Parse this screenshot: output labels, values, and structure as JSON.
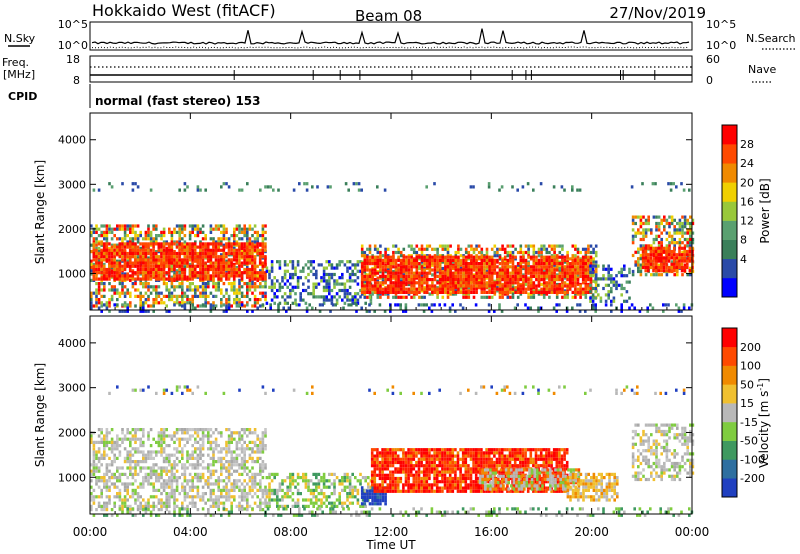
{
  "header": {
    "station": "Hokkaido West (fitACF)",
    "beam": "Beam 08",
    "date": "27/Nov/2019"
  },
  "strips": {
    "nsky_label": "N.Sky",
    "nsearch_label": "N.Search",
    "noise_ticks_left": [
      "10^5",
      "10^0"
    ],
    "noise_ticks_right": [
      "10^5",
      "10^0"
    ],
    "freq_label_1": "Freq.",
    "freq_label_2": "[MHz]",
    "freq_ticks": [
      "18",
      "8"
    ],
    "nave_label": "Nave",
    "nave_ticks": [
      "60",
      "0"
    ],
    "cpid_label": "CPID",
    "cpid_text": "normal (fast stereo) 153"
  },
  "chart_data": [
    {
      "type": "heatmap",
      "name": "power",
      "ylabel": "Slant Range [km]",
      "xlabel": "",
      "x_ticks": [
        "00:00",
        "04:00",
        "08:00",
        "12:00",
        "16:00",
        "20:00",
        "00:00"
      ],
      "xlim_hours": [
        0,
        24
      ],
      "y_ticks": [
        "1000",
        "2000",
        "3000",
        "4000"
      ],
      "ylim": [
        180,
        4600
      ],
      "colorbar": {
        "label": "Power [dB]",
        "ticks": [
          "28",
          "24",
          "20",
          "16",
          "12",
          "8",
          "4"
        ],
        "colors": [
          "#0000ff",
          "#2a4aa8",
          "#3a7f5a",
          "#5aa070",
          "#99c83a",
          "#f0d000",
          "#f08a00",
          "#ff4a00",
          "#ff0000"
        ]
      },
      "regions": [
        {
          "t0": 0.0,
          "t1": 7.0,
          "r0": 250,
          "r1": 2100,
          "class": "mixed"
        },
        {
          "t0": 0.1,
          "t1": 7.0,
          "r0": 900,
          "r1": 1700,
          "class": "strong"
        },
        {
          "t0": 7.0,
          "t1": 11.2,
          "r0": 350,
          "r1": 1300,
          "class": "weak"
        },
        {
          "t0": 10.8,
          "t1": 20.2,
          "r0": 500,
          "r1": 1650,
          "class": "mixed"
        },
        {
          "t0": 10.8,
          "t1": 20.0,
          "r0": 550,
          "r1": 1400,
          "class": "strong"
        },
        {
          "t0": 19.9,
          "t1": 21.5,
          "r0": 350,
          "r1": 1200,
          "class": "weak"
        },
        {
          "t0": 21.6,
          "t1": 24.0,
          "r0": 950,
          "r1": 2300,
          "class": "mixed"
        },
        {
          "t0": 22.0,
          "t1": 24.0,
          "r0": 1050,
          "r1": 1600,
          "class": "strong"
        },
        {
          "t0": 0.0,
          "t1": 24.0,
          "r0": 2900,
          "r1": 3050,
          "class": "sparse"
        },
        {
          "t0": 0.0,
          "t1": 24.0,
          "r0": 180,
          "r1": 330,
          "class": "ground"
        }
      ]
    },
    {
      "type": "heatmap",
      "name": "velocity",
      "ylabel": "Slant Range [km]",
      "xlabel": "Time UT",
      "x_ticks": [
        "00:00",
        "04:00",
        "08:00",
        "12:00",
        "16:00",
        "20:00",
        "00:00"
      ],
      "xlim_hours": [
        0,
        24
      ],
      "y_ticks": [
        "1000",
        "2000",
        "3000",
        "4000"
      ],
      "ylim": [
        180,
        4600
      ],
      "colorbar": {
        "label_main": "Velocity [m s",
        "label_sup": "-1",
        "label_close": "]",
        "ticks": [
          "200",
          "100",
          "50",
          "15",
          "-15",
          "-50",
          "-100",
          "-200"
        ],
        "colors": [
          "#2040c0",
          "#2e6fa0",
          "#3f9960",
          "#7fcc40",
          "#b8b8b8",
          "#f0c030",
          "#f08a00",
          "#ff4a00",
          "#ff0000"
        ]
      },
      "regions": [
        {
          "t0": 0.0,
          "t1": 7.0,
          "r0": 300,
          "r1": 2100,
          "class": "gray"
        },
        {
          "t0": 7.0,
          "t1": 11.2,
          "r0": 350,
          "r1": 1100,
          "class": "green"
        },
        {
          "t0": 10.8,
          "t1": 11.8,
          "r0": 400,
          "r1": 800,
          "class": "blue"
        },
        {
          "t0": 11.2,
          "t1": 19.0,
          "r0": 700,
          "r1": 1650,
          "class": "red"
        },
        {
          "t0": 15.5,
          "t1": 19.5,
          "r0": 700,
          "r1": 1200,
          "class": "mixed"
        },
        {
          "t0": 19.0,
          "t1": 21.0,
          "r0": 500,
          "r1": 1100,
          "class": "orange"
        },
        {
          "t0": 21.6,
          "t1": 24.0,
          "r0": 950,
          "r1": 2200,
          "class": "gray"
        },
        {
          "t0": 0.0,
          "t1": 24.0,
          "r0": 2900,
          "r1": 3050,
          "class": "sparse"
        },
        {
          "t0": 0.0,
          "t1": 24.0,
          "r0": 180,
          "r1": 330,
          "class": "ground"
        }
      ]
    }
  ]
}
